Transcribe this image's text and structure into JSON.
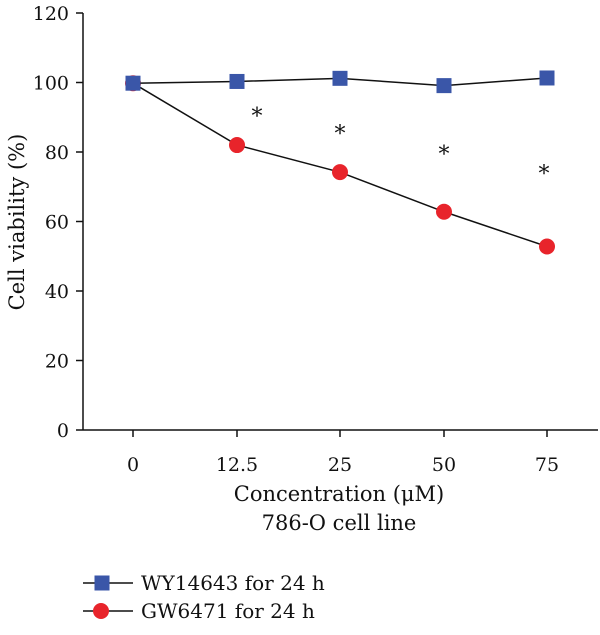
{
  "chart_data": {
    "type": "line",
    "categories": [
      "0",
      "12.5",
      "25",
      "50",
      "75"
    ],
    "xlabel": "Concentration (μM)",
    "xlabel_sub": "786-O cell line",
    "ylabel": "Cell viability (%)",
    "ylim": [
      0,
      120
    ],
    "yticks": [
      0,
      20,
      40,
      60,
      80,
      100,
      120
    ],
    "grid": false,
    "legend_position": "bottom-left",
    "series": [
      {
        "name": "WY14643 for 24 h",
        "marker": "square",
        "color": "#3a56a8",
        "values": [
          99.8,
          100.3,
          101.2,
          99.1,
          101.3
        ]
      },
      {
        "name": "GW6471 for 24 h",
        "marker": "circle",
        "color": "#e8242b",
        "values": [
          99.8,
          82.0,
          74.2,
          62.8,
          52.8
        ]
      }
    ],
    "annotations": [
      {
        "text": "*",
        "category": "12.5",
        "y": 90.5
      },
      {
        "text": "*",
        "category": "25",
        "y": 85.5
      },
      {
        "text": "*",
        "category": "50",
        "y": 79.5
      },
      {
        "text": "*",
        "category": "75",
        "y": 74.0
      }
    ]
  }
}
